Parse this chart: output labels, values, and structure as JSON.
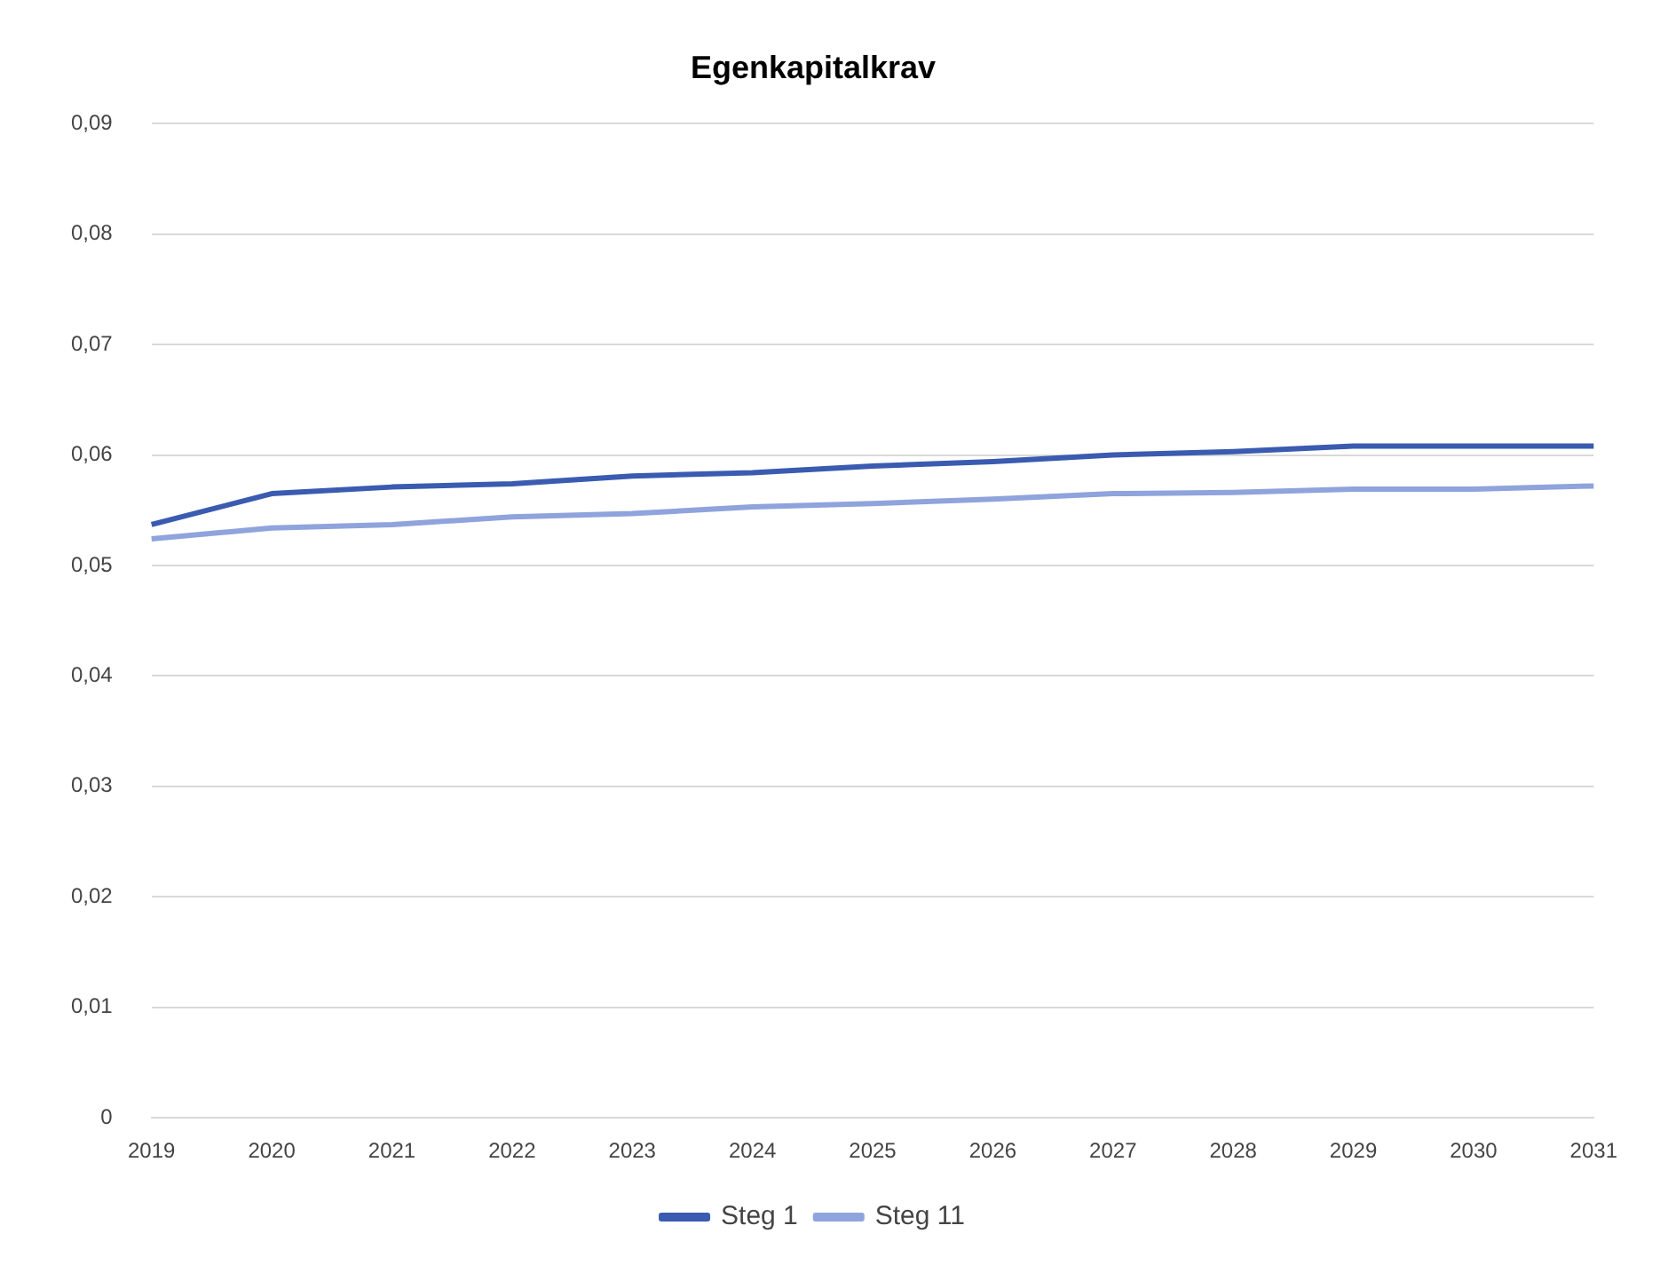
{
  "chart_data": {
    "type": "line",
    "title": "Egenkapitalkrav",
    "categories": [
      "2019",
      "2020",
      "2021",
      "2022",
      "2023",
      "2024",
      "2025",
      "2026",
      "2027",
      "2028",
      "2029",
      "2030",
      "2031"
    ],
    "series": [
      {
        "name": "Steg 1",
        "color": "#3a5bb0",
        "values": [
          0.0537,
          0.0565,
          0.0571,
          0.0574,
          0.0581,
          0.0584,
          0.059,
          0.0594,
          0.06,
          0.0603,
          0.0608,
          0.0608,
          0.0608
        ]
      },
      {
        "name": "Steg 11",
        "color": "#8fa3dc",
        "values": [
          0.0524,
          0.0534,
          0.0537,
          0.0544,
          0.0547,
          0.0553,
          0.0556,
          0.056,
          0.0565,
          0.0566,
          0.0569,
          0.0569,
          0.0572
        ]
      }
    ],
    "ylim": [
      0,
      0.09
    ],
    "yticks": [
      0,
      {
        "value": 0.01,
        "label": "0,01"
      },
      {
        "value": 0.02,
        "label": "0,02"
      },
      {
        "value": 0.03,
        "label": "0,03"
      },
      {
        "value": 0.04,
        "label": "0,04"
      },
      {
        "value": 0.05,
        "label": "0,05"
      },
      {
        "value": 0.06,
        "label": "0,06"
      },
      {
        "value": 0.07,
        "label": "0,07"
      },
      {
        "value": 0.08,
        "label": "0,08"
      },
      {
        "value": 0.09,
        "label": "0,09"
      }
    ],
    "grid": "y",
    "legend": "bottom",
    "marker": "none",
    "line_style": "solid"
  }
}
